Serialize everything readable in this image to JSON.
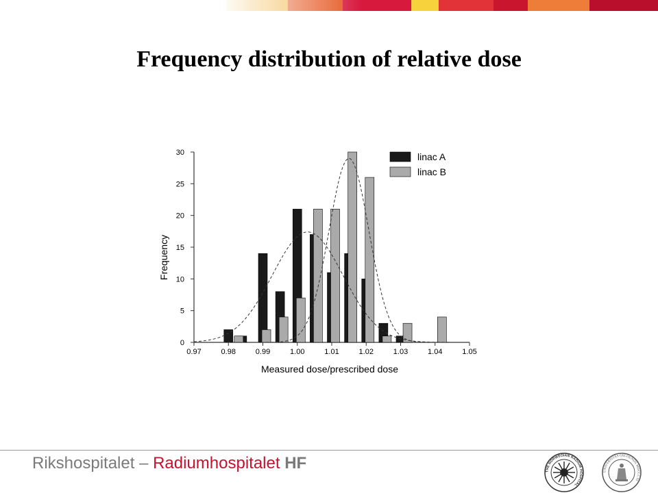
{
  "slide": {
    "title": "Frequency distribution of relative dose"
  },
  "footer": {
    "org_part1": "Rikshospitalet – ",
    "org_part2": "Radiumhospitalet",
    "org_part3": " HF",
    "seal_left_text": "THE NORWEGIAN RADIUM HOSPITAL",
    "seal_right_text": "UNIVERSITAS OSLOENSIS MDCCCXI"
  },
  "colors": {
    "linac_a": "#1a1a1a",
    "linac_b": "#aaaaaa",
    "brand_red": "#c4122f",
    "footer_gray": "#7a7a7a",
    "top_stripe": [
      "#f0b23c",
      "#e5551f",
      "#d7193e",
      "#f7d23c",
      "#e23338",
      "#c9152e",
      "#ef7d3a",
      "#b90f2c"
    ]
  },
  "chart_data": {
    "type": "bar",
    "title": "",
    "xlabel": "Measured dose/prescribed dose",
    "ylabel": "Frequency",
    "xlim": [
      0.97,
      1.05
    ],
    "ylim": [
      0,
      30
    ],
    "xticks": [
      "0.97",
      "0.98",
      "0.99",
      "1.00",
      "1.01",
      "1.02",
      "1.03",
      "1.04",
      "1.05"
    ],
    "yticks": [
      "0",
      "5",
      "10",
      "15",
      "20",
      "25",
      "30"
    ],
    "legend_position": "top-right",
    "series": [
      {
        "name": "linac A",
        "x": [
          0.98,
          0.984,
          0.99,
          0.995,
          1.0,
          1.005,
          1.01,
          1.015,
          1.02,
          1.025,
          1.03
        ],
        "values": [
          2,
          1,
          14,
          8,
          21,
          17,
          11,
          14,
          10,
          3,
          1
        ]
      },
      {
        "name": "linac B",
        "x": [
          0.983,
          0.991,
          0.996,
          1.001,
          1.006,
          1.011,
          1.016,
          1.021,
          1.026,
          1.032,
          1.042
        ],
        "values": [
          1,
          2,
          4,
          7,
          21,
          21,
          30,
          26,
          1,
          3,
          4
        ]
      }
    ],
    "fit_curves": [
      {
        "series": "linac A",
        "style": "dashed",
        "mean": 1.003,
        "peak": 17.4,
        "sd": 0.0103
      },
      {
        "series": "linac B",
        "style": "dashed",
        "mean": 1.015,
        "peak": 29,
        "sd": 0.0058
      }
    ]
  }
}
